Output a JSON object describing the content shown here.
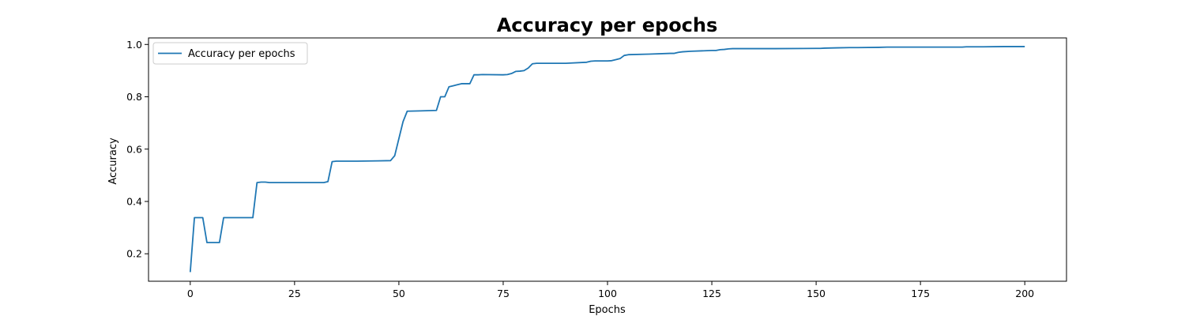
{
  "chart_data": {
    "type": "line",
    "title": "Accuracy per epochs",
    "xlabel": "Epochs",
    "ylabel": "Accuracy",
    "xlim": [
      -10,
      210
    ],
    "ylim": [
      0.095,
      1.025
    ],
    "xticks": [
      0,
      25,
      50,
      75,
      100,
      125,
      150,
      175,
      200
    ],
    "yticks": [
      0.2,
      0.4,
      0.6,
      0.8,
      1.0
    ],
    "ytick_labels": [
      "0.2",
      "0.4",
      "0.6",
      "0.8",
      "1.0"
    ],
    "grid": false,
    "legend_position": "top-left",
    "series": [
      {
        "name": "Accuracy per epochs",
        "color": "#1f77b4",
        "x": [
          0,
          1,
          2,
          3,
          4,
          5,
          6,
          7,
          8,
          9,
          10,
          11,
          12,
          13,
          14,
          15,
          16,
          17,
          18,
          19,
          20,
          25,
          30,
          31,
          32,
          33,
          34,
          35,
          40,
          45,
          48,
          49,
          50,
          51,
          52,
          55,
          59,
          60,
          61,
          62,
          63,
          64,
          65,
          66,
          67,
          68,
          69,
          70,
          75,
          76,
          77,
          78,
          79,
          80,
          81,
          82,
          83,
          84,
          85,
          90,
          95,
          96,
          97,
          98,
          99,
          100,
          101,
          102,
          103,
          104,
          105,
          110,
          115,
          116,
          117,
          118,
          120,
          125,
          126,
          127,
          128,
          129,
          130,
          131,
          135,
          140,
          150,
          151,
          152,
          155,
          158,
          160,
          165,
          167,
          170,
          180,
          185,
          186,
          190,
          195,
          200
        ],
        "values": [
          0.13,
          0.338,
          0.338,
          0.338,
          0.243,
          0.243,
          0.243,
          0.243,
          0.338,
          0.338,
          0.338,
          0.338,
          0.338,
          0.338,
          0.338,
          0.338,
          0.472,
          0.474,
          0.474,
          0.472,
          0.472,
          0.472,
          0.472,
          0.472,
          0.472,
          0.476,
          0.552,
          0.554,
          0.554,
          0.555,
          0.556,
          0.575,
          0.64,
          0.705,
          0.745,
          0.746,
          0.748,
          0.8,
          0.8,
          0.838,
          0.842,
          0.846,
          0.85,
          0.85,
          0.85,
          0.884,
          0.884,
          0.885,
          0.884,
          0.885,
          0.889,
          0.897,
          0.898,
          0.9,
          0.91,
          0.926,
          0.928,
          0.928,
          0.928,
          0.928,
          0.932,
          0.936,
          0.937,
          0.937,
          0.937,
          0.937,
          0.938,
          0.942,
          0.946,
          0.958,
          0.961,
          0.963,
          0.966,
          0.966,
          0.97,
          0.972,
          0.974,
          0.977,
          0.977,
          0.98,
          0.981,
          0.983,
          0.984,
          0.984,
          0.984,
          0.984,
          0.985,
          0.985,
          0.986,
          0.987,
          0.988,
          0.988,
          0.989,
          0.99,
          0.99,
          0.99,
          0.99,
          0.991,
          0.991,
          0.992,
          0.992
        ]
      }
    ]
  }
}
